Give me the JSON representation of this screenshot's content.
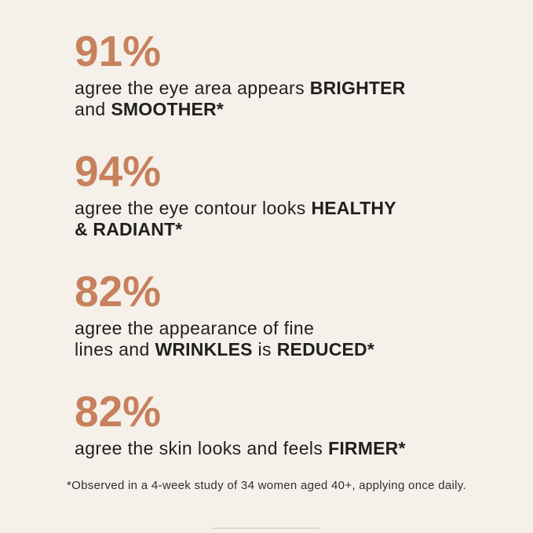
{
  "page": {
    "background_color": "#f5f1ea",
    "accent_color": "#c6815d",
    "text_color": "#1f1f1f",
    "faint_line_color": "#dcd8d1"
  },
  "stats": [
    {
      "percent": "91%",
      "lines": [
        [
          {
            "text": "agree the eye area appears ",
            "bold": false
          },
          {
            "text": "BRIGHTER",
            "bold": true
          }
        ],
        [
          {
            "text": "and ",
            "bold": false
          },
          {
            "text": "SMOOTHER*",
            "bold": true
          }
        ]
      ]
    },
    {
      "percent": "94%",
      "lines": [
        [
          {
            "text": "agree the eye contour looks ",
            "bold": false
          },
          {
            "text": "HEALTHY",
            "bold": true
          }
        ],
        [
          {
            "text": "& RADIANT*",
            "bold": true
          }
        ]
      ]
    },
    {
      "percent": "82%",
      "lines": [
        [
          {
            "text": "agree the appearance of fine",
            "bold": false
          }
        ],
        [
          {
            "text": "lines and ",
            "bold": false
          },
          {
            "text": "WRINKLES",
            "bold": true
          },
          {
            "text": " is ",
            "bold": false
          },
          {
            "text": "REDUCED*",
            "bold": true
          }
        ]
      ]
    },
    {
      "percent": "82%",
      "lines": [
        [
          {
            "text": "agree the skin looks and feels ",
            "bold": false
          },
          {
            "text": "FIRMER*",
            "bold": true
          }
        ]
      ]
    }
  ],
  "footnote": {
    "text": "*Observed in a 4-week study of 34 women aged 40+, applying once daily."
  }
}
